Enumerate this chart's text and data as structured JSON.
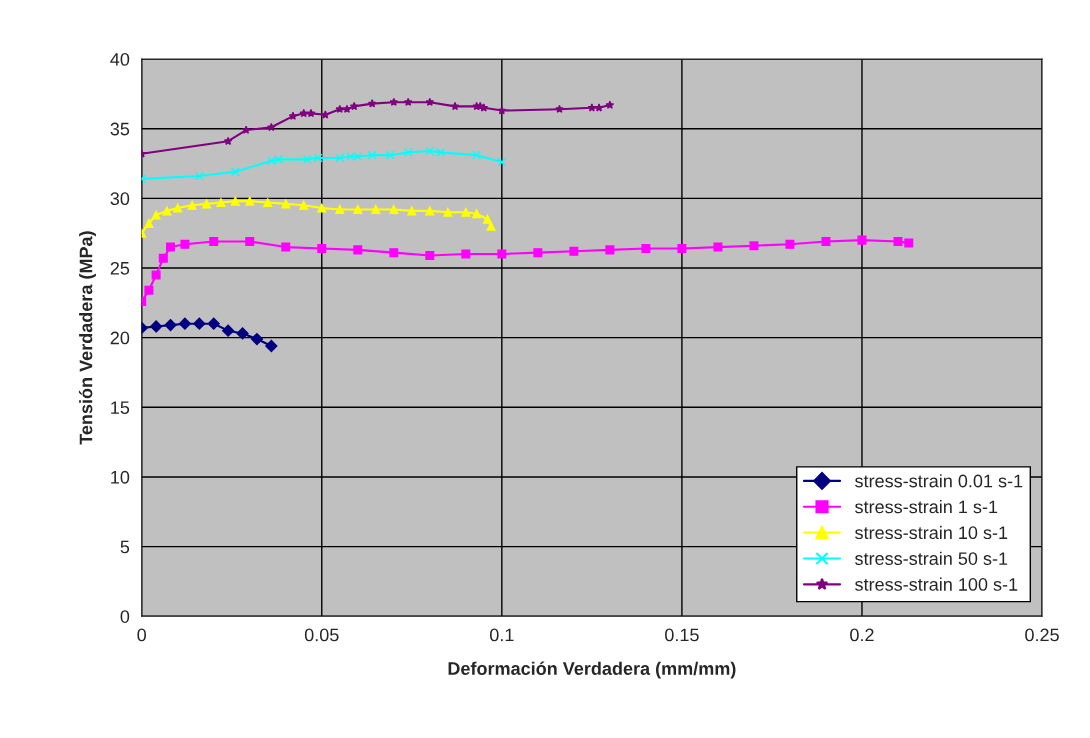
{
  "chart_data": {
    "type": "line",
    "xlabel": "Deformación Verdadera (mm/mm)",
    "ylabel": "Tensión Verdadera (MPa)",
    "xlim": [
      0,
      0.25
    ],
    "xticks": [
      {
        "value": 0,
        "label": "0"
      },
      0.05,
      0.1,
      0.15,
      0.2,
      0.25
    ],
    "ylim": [
      0,
      40
    ],
    "yticks": [
      0,
      5,
      10,
      15,
      20,
      25,
      30,
      35,
      40
    ],
    "grid": true,
    "legend": "bottom right",
    "series": [
      {
        "name": "stress-strain 0.01 s-1",
        "color": "#000080",
        "marker": "diamond",
        "x": [
          0,
          0.004,
          0.008,
          0.012,
          0.016,
          0.02,
          0.024,
          0.028,
          0.032,
          0.036
        ],
        "values": [
          20.7,
          20.8,
          20.9,
          21.0,
          21.0,
          21.0,
          20.5,
          20.3,
          19.9,
          19.4
        ]
      },
      {
        "name": "stress-strain 1 s-1",
        "color": "#ff00ff",
        "marker": "square",
        "x": [
          0,
          0.002,
          0.004,
          0.006,
          0.008,
          0.012,
          0.02,
          0.03,
          0.04,
          0.05,
          0.06,
          0.07,
          0.08,
          0.09,
          0.1,
          0.11,
          0.12,
          0.13,
          0.14,
          0.15,
          0.16,
          0.17,
          0.18,
          0.19,
          0.2,
          0.21,
          0.213
        ],
        "values": [
          22.6,
          23.4,
          24.5,
          25.7,
          26.5,
          26.7,
          26.9,
          26.9,
          26.5,
          26.4,
          26.3,
          26.1,
          25.9,
          26.0,
          26.0,
          26.1,
          26.2,
          26.3,
          26.4,
          26.4,
          26.5,
          26.6,
          26.7,
          26.9,
          27.0,
          26.9,
          26.8
        ]
      },
      {
        "name": "stress-strain 10 s-1",
        "color": "#ffff00",
        "marker": "triangle",
        "x": [
          0,
          0.002,
          0.004,
          0.007,
          0.01,
          0.014,
          0.018,
          0.022,
          0.026,
          0.03,
          0.035,
          0.04,
          0.045,
          0.05,
          0.055,
          0.06,
          0.065,
          0.07,
          0.075,
          0.08,
          0.085,
          0.09,
          0.093,
          0.096,
          0.097
        ],
        "values": [
          27.5,
          28.2,
          28.8,
          29.1,
          29.3,
          29.5,
          29.6,
          29.7,
          29.8,
          29.8,
          29.7,
          29.6,
          29.5,
          29.3,
          29.2,
          29.2,
          29.2,
          29.2,
          29.1,
          29.1,
          29.0,
          29.0,
          28.9,
          28.5,
          28.0
        ]
      },
      {
        "name": "stress-strain 50 s-1",
        "color": "#00ffff",
        "marker": "cross",
        "x": [
          0,
          0.016,
          0.026,
          0.036,
          0.038,
          0.046,
          0.049,
          0.055,
          0.058,
          0.06,
          0.064,
          0.069,
          0.074,
          0.08,
          0.083,
          0.093,
          0.1
        ],
        "values": [
          31.4,
          31.6,
          31.9,
          32.7,
          32.8,
          32.8,
          32.9,
          32.9,
          33.0,
          33.0,
          33.1,
          33.1,
          33.3,
          33.4,
          33.3,
          33.1,
          32.6
        ]
      },
      {
        "name": "stress-strain 100 s-1",
        "color": "#800080",
        "marker": "star",
        "x": [
          0,
          0.024,
          0.029,
          0.036,
          0.042,
          0.045,
          0.047,
          0.051,
          0.055,
          0.057,
          0.059,
          0.064,
          0.07,
          0.074,
          0.08,
          0.087,
          0.093,
          0.094,
          0.095,
          0.1,
          0.116,
          0.125,
          0.127,
          0.13
        ],
        "values": [
          33.2,
          34.1,
          34.9,
          35.1,
          35.9,
          36.1,
          36.1,
          36.0,
          36.4,
          36.4,
          36.6,
          36.8,
          36.9,
          36.9,
          36.9,
          36.6,
          36.6,
          36.6,
          36.5,
          36.3,
          36.4,
          36.5,
          36.5,
          36.7
        ]
      }
    ]
  }
}
